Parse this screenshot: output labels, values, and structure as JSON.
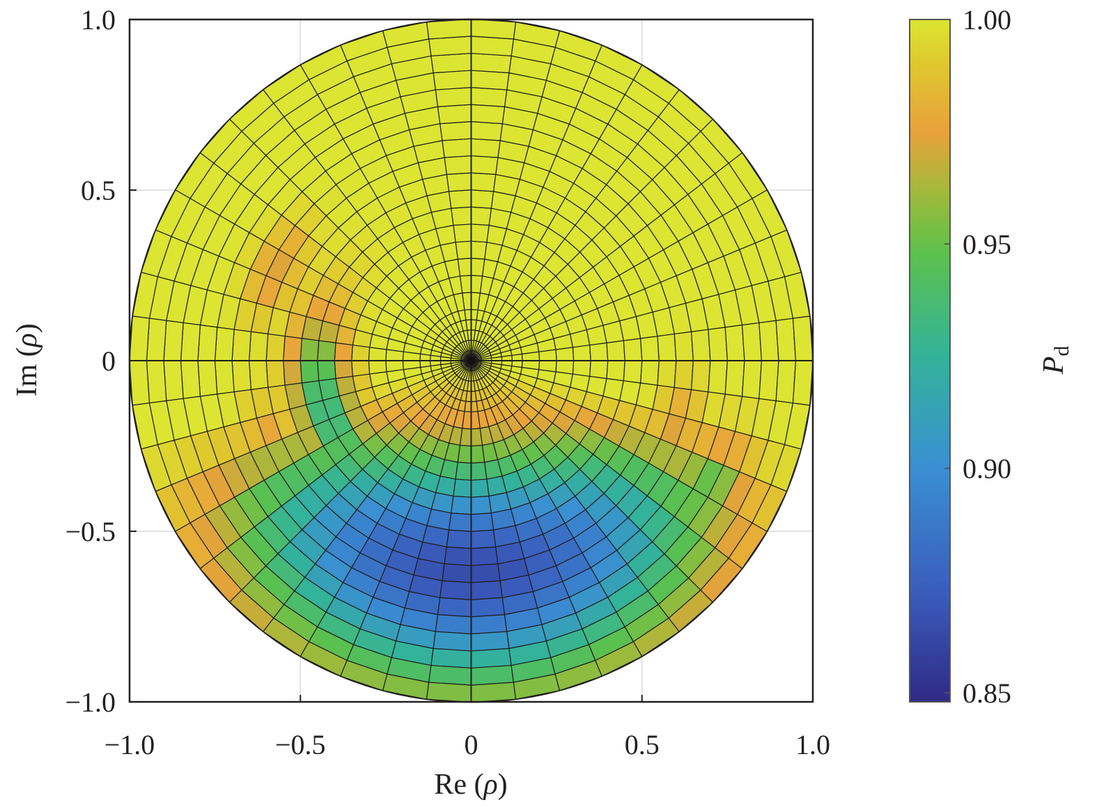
{
  "chart_data": {
    "type": "heatmap",
    "coordinate_system": "polar grid on complex plane",
    "xlabel_prefix": "Re",
    "ylabel_prefix": "Im",
    "axis_symbol": "ρ",
    "colorbar_label_main": "P",
    "colorbar_label_sub": "d",
    "xlim": [
      -1.0,
      1.0
    ],
    "ylim": [
      -1.0,
      1.0
    ],
    "x_ticks": [
      {
        "value": -1.0,
        "label": "−1.0"
      },
      {
        "value": -0.5,
        "label": "−0.5"
      },
      {
        "value": 0,
        "label": "0"
      },
      {
        "value": 0.5,
        "label": "0.5"
      },
      {
        "value": 1.0,
        "label": "1.0"
      }
    ],
    "y_ticks": [
      {
        "value": 1.0,
        "label": "1.0"
      },
      {
        "value": 0.5,
        "label": "0.5"
      },
      {
        "value": 0,
        "label": "0"
      },
      {
        "value": -0.5,
        "label": "−0.5"
      },
      {
        "value": -1.0,
        "label": "−1.0"
      }
    ],
    "colorbar": {
      "range": [
        0.848,
        1.0
      ],
      "ticks": [
        {
          "value": 1.0,
          "label": "1.00"
        },
        {
          "value": 0.95,
          "label": "0.95"
        },
        {
          "value": 0.9,
          "label": "0.90"
        },
        {
          "value": 0.85,
          "label": "0.85"
        }
      ],
      "colormap": [
        {
          "v": 0.848,
          "color": "#2f2a85"
        },
        {
          "v": 0.872,
          "color": "#3a5cbc"
        },
        {
          "v": 0.9,
          "color": "#3a8fd3"
        },
        {
          "v": 0.925,
          "color": "#33b39a"
        },
        {
          "v": 0.948,
          "color": "#5cc14c"
        },
        {
          "v": 0.962,
          "color": "#a4b93a"
        },
        {
          "v": 0.975,
          "color": "#e9a13b"
        },
        {
          "v": 0.99,
          "color": "#dfc82e"
        },
        {
          "v": 1.0,
          "color": "#dce531"
        }
      ]
    },
    "grid": {
      "radii": [
        0,
        0.03,
        0.06,
        0.09,
        0.12,
        0.15,
        0.2,
        0.25,
        0.3,
        0.35,
        0.4,
        0.45,
        0.5,
        0.55,
        0.6,
        0.65,
        0.7,
        0.75,
        0.8,
        0.85,
        0.9,
        0.95,
        1.0
      ],
      "angle_divisions": 48
    },
    "field_model": {
      "dip_center_deg": 270,
      "dip_halfwidth_deg": 75,
      "dip_min": 0.865,
      "ring_angles_deg": [
        155,
        205,
        230,
        245,
        320,
        340
      ],
      "ring_radius": 0.63,
      "ring_width": 0.07,
      "ring_value": 0.975,
      "edge_green_angles_deg": [
        310,
        330
      ],
      "edge_green_radius": 0.78
    },
    "major_grid": true
  }
}
